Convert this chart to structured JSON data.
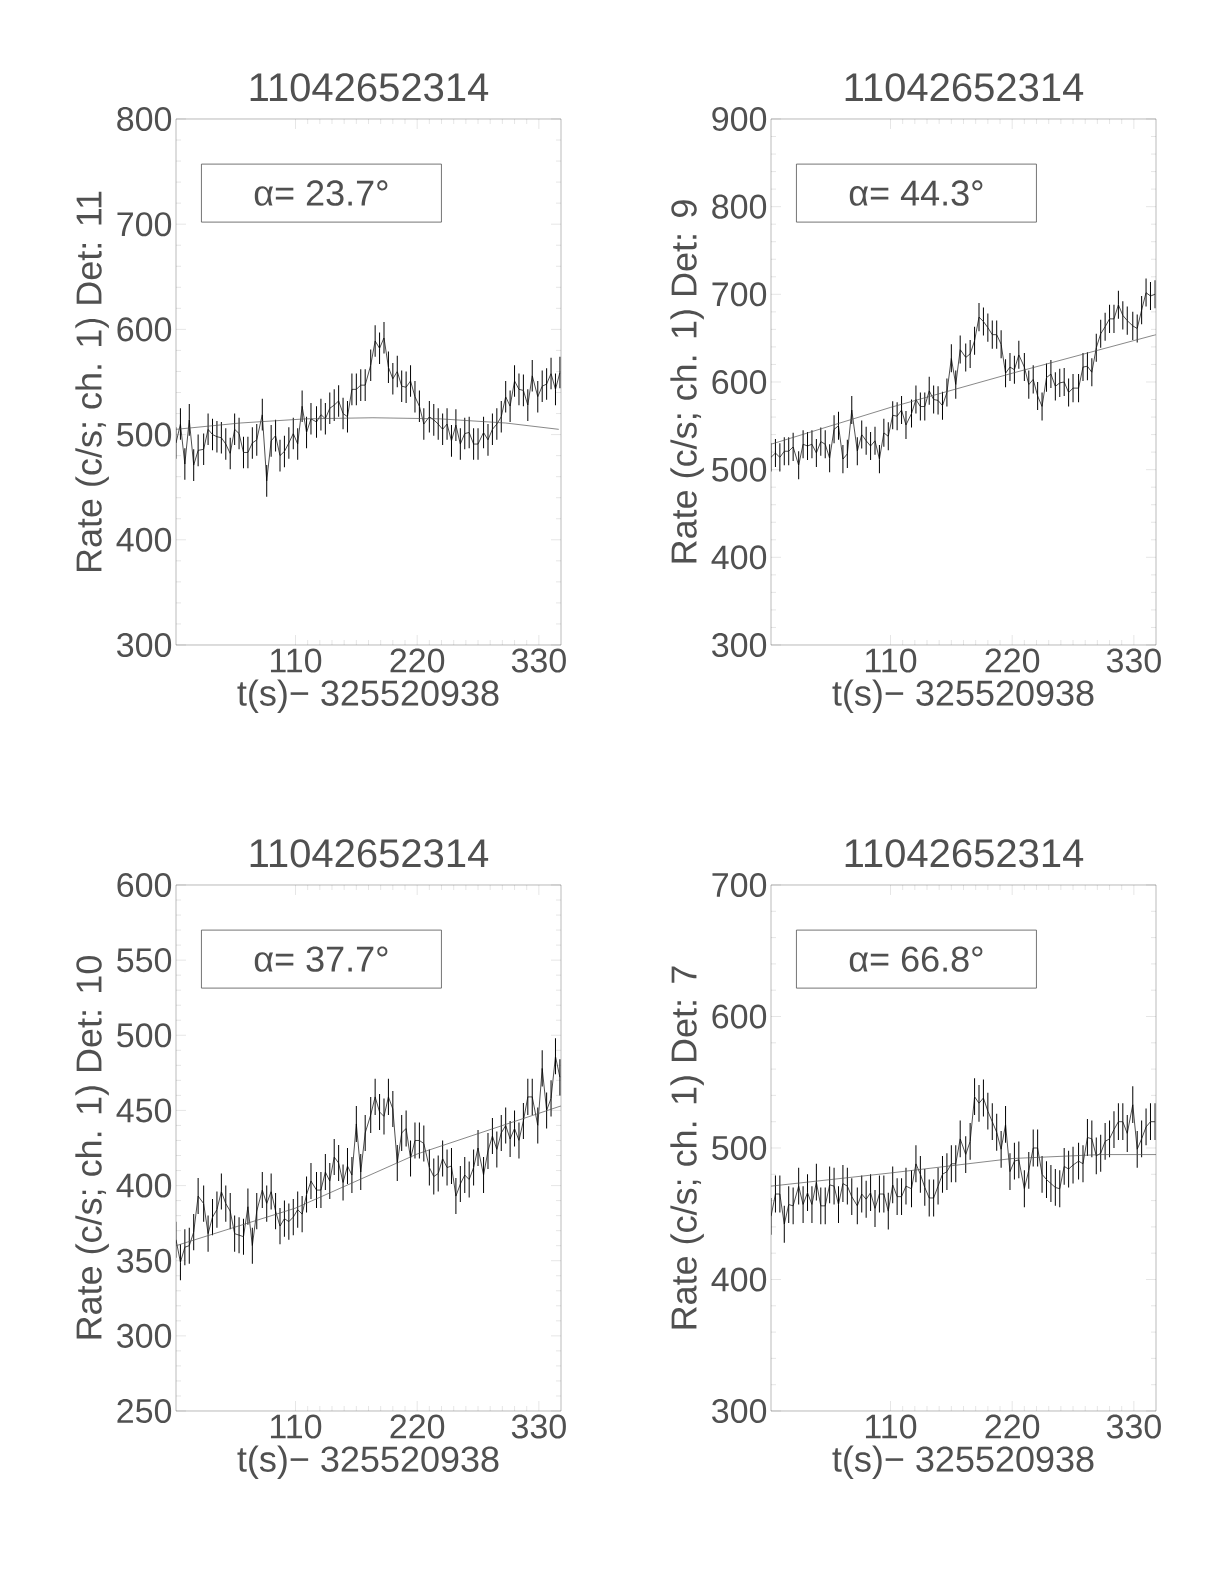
{
  "chart_data": [
    {
      "type": "line",
      "title": "11042652314",
      "xlabel": "t(s)− 325520938",
      "ylabel": "Rate (c/s; ch. 1) Det: 11",
      "annotations": [
        "α= 23.7°"
      ],
      "x": [
        2,
        6,
        10,
        14,
        18,
        22,
        27,
        31,
        35,
        39,
        43,
        47,
        51,
        55,
        59,
        63,
        67,
        71,
        75,
        80,
        84,
        88,
        92,
        96,
        100,
        104,
        108,
        112,
        116,
        120,
        124,
        129,
        133,
        137,
        141,
        145,
        149,
        153,
        157,
        161,
        165,
        169,
        173,
        178,
        182,
        186,
        190,
        194,
        198,
        202,
        206,
        210,
        214,
        218,
        222,
        226,
        231,
        235,
        239,
        243,
        247,
        251,
        255,
        259,
        263,
        267,
        271,
        275,
        280,
        284,
        288,
        292,
        296,
        300,
        304,
        308,
        312,
        316,
        320,
        324,
        329,
        333,
        337,
        341,
        345,
        349
      ],
      "xlim": [
        2,
        350
      ],
      "xticks": [
        110,
        220,
        330
      ],
      "ylim": [
        300,
        800
      ],
      "yticks": [
        300,
        400,
        500,
        600,
        700,
        800
      ],
      "series": [
        {
          "color": "#000000",
          "values": [
            492,
            510,
            472,
            514,
            471,
            485,
            486,
            505,
            500,
            498,
            497,
            491,
            482,
            505,
            501,
            483,
            483,
            492,
            495,
            519,
            456,
            494,
            499,
            480,
            484,
            492,
            501,
            491,
            527,
            502,
            515,
            512,
            519,
            515,
            525,
            528,
            532,
            520,
            517,
            543,
            543,
            547,
            547,
            566,
            589,
            582,
            592,
            564,
            553,
            560,
            546,
            545,
            551,
            536,
            527,
            510,
            517,
            514,
            510,
            505,
            510,
            494,
            509,
            491,
            501,
            502,
            491,
            491,
            502,
            495,
            505,
            510,
            517,
            536,
            527,
            551,
            543,
            542,
            528,
            556,
            536,
            546,
            548,
            558,
            543,
            559
          ],
          "errors": [
            15,
            15,
            15,
            15,
            15,
            15,
            15,
            15,
            15,
            15,
            15,
            15,
            15,
            15,
            15,
            15,
            15,
            15,
            15,
            15,
            15,
            15,
            15,
            15,
            15,
            15,
            15,
            15,
            15,
            15,
            15,
            15,
            15,
            15,
            15,
            15,
            15,
            15,
            15,
            15,
            15,
            15,
            15,
            15,
            15,
            15,
            15,
            15,
            15,
            15,
            15,
            15,
            15,
            15,
            15,
            15,
            15,
            15,
            15,
            15,
            15,
            15,
            15,
            15,
            15,
            15,
            15,
            15,
            15,
            15,
            15,
            15,
            15,
            15,
            15,
            15,
            15,
            15,
            15,
            15,
            15,
            15,
            15,
            15,
            15,
            15
          ]
        },
        {
          "color": "#555555",
          "x": [
            2,
            60,
            120,
            180,
            240,
            300,
            348
          ],
          "values": [
            505,
            511,
            515,
            516,
            515,
            511,
            505
          ]
        }
      ]
    },
    {
      "type": "line",
      "title": "11042652314",
      "xlabel": "t(s)− 325520938",
      "ylabel": "Rate (c/s; ch. 1) Det: 9",
      "annotations": [
        "α= 44.3°"
      ],
      "x": [
        2,
        6,
        10,
        14,
        18,
        22,
        27,
        31,
        35,
        39,
        43,
        47,
        51,
        55,
        59,
        63,
        67,
        71,
        75,
        80,
        84,
        88,
        92,
        96,
        100,
        104,
        108,
        112,
        116,
        120,
        124,
        129,
        133,
        137,
        141,
        145,
        149,
        153,
        157,
        161,
        165,
        169,
        173,
        178,
        182,
        186,
        190,
        194,
        198,
        202,
        206,
        210,
        214,
        218,
        222,
        226,
        231,
        235,
        239,
        243,
        247,
        251,
        255,
        259,
        263,
        267,
        271,
        275,
        280,
        284,
        288,
        292,
        296,
        300,
        304,
        308,
        312,
        316,
        320,
        324,
        329,
        333,
        337,
        341,
        345,
        349
      ],
      "xlim": [
        2,
        350
      ],
      "xticks": [
        110,
        220,
        330
      ],
      "ylim": [
        300,
        900
      ],
      "yticks": [
        300,
        400,
        500,
        600,
        700,
        800,
        900
      ],
      "series": [
        {
          "color": "#000000",
          "values": [
            514,
            519,
            514,
            521,
            521,
            526,
            505,
            529,
            527,
            529,
            519,
            532,
            529,
            513,
            546,
            550,
            512,
            518,
            568,
            521,
            540,
            533,
            527,
            533,
            512,
            542,
            538,
            562,
            561,
            568,
            551,
            564,
            580,
            572,
            572,
            590,
            580,
            579,
            573,
            588,
            627,
            597,
            637,
            628,
            632,
            647,
            674,
            669,
            662,
            654,
            654,
            643,
            610,
            617,
            614,
            631,
            617,
            597,
            603,
            584,
            572,
            605,
            609,
            595,
            599,
            600,
            588,
            593,
            593,
            617,
            618,
            611,
            639,
            655,
            663,
            672,
            672,
            688,
            676,
            670,
            664,
            661,
            682,
            702,
            698,
            700
          ],
          "errors": [
            16,
            16,
            16,
            16,
            16,
            16,
            16,
            16,
            16,
            16,
            16,
            16,
            16,
            16,
            16,
            16,
            16,
            16,
            16,
            16,
            16,
            16,
            16,
            16,
            16,
            16,
            16,
            16,
            16,
            16,
            16,
            16,
            16,
            16,
            16,
            16,
            16,
            16,
            16,
            16,
            16,
            16,
            16,
            16,
            16,
            16,
            16,
            16,
            16,
            16,
            16,
            16,
            16,
            16,
            16,
            16,
            16,
            16,
            16,
            16,
            16,
            16,
            16,
            16,
            16,
            16,
            16,
            16,
            16,
            16,
            16,
            16,
            16,
            16,
            16,
            16,
            16,
            16,
            16,
            16,
            16,
            16,
            16,
            16,
            16,
            16
          ]
        },
        {
          "color": "#555555",
          "x": [
            2,
            110,
            220,
            350
          ],
          "values": [
            529,
            571,
            610,
            654
          ]
        }
      ]
    },
    {
      "type": "line",
      "title": "11042652314",
      "xlabel": "t(s)− 325520938",
      "ylabel": "Rate (c/s; ch. 1) Det: 10",
      "annotations": [
        "α= 37.7°"
      ],
      "x": [
        2,
        6,
        10,
        14,
        18,
        22,
        27,
        31,
        35,
        39,
        43,
        47,
        51,
        55,
        59,
        63,
        67,
        71,
        75,
        80,
        84,
        88,
        92,
        96,
        100,
        104,
        108,
        112,
        116,
        120,
        124,
        129,
        133,
        137,
        141,
        145,
        149,
        153,
        157,
        161,
        165,
        169,
        173,
        178,
        182,
        186,
        190,
        194,
        198,
        202,
        206,
        210,
        214,
        218,
        222,
        226,
        231,
        235,
        239,
        243,
        247,
        251,
        255,
        259,
        263,
        267,
        271,
        275,
        280,
        284,
        288,
        292,
        296,
        300,
        304,
        308,
        312,
        316,
        320,
        324,
        329,
        333,
        337,
        341,
        345,
        349
      ],
      "xlim": [
        2,
        350
      ],
      "xticks": [
        110,
        220,
        330
      ],
      "ylim": [
        250,
        600
      ],
      "yticks": [
        250,
        300,
        350,
        400,
        450,
        500,
        550,
        600
      ],
      "series": [
        {
          "color": "#000000",
          "values": [
            364,
            349,
            359,
            360,
            369,
            393,
            388,
            368,
            379,
            384,
            396,
            388,
            383,
            368,
            367,
            366,
            386,
            360,
            383,
            397,
            388,
            396,
            383,
            373,
            378,
            376,
            379,
            384,
            381,
            394,
            403,
            397,
            397,
            409,
            403,
            419,
            415,
            402,
            413,
            407,
            441,
            409,
            435,
            447,
            459,
            449,
            446,
            459,
            451,
            415,
            435,
            438,
            418,
            430,
            430,
            428,
            412,
            406,
            408,
            418,
            412,
            413,
            393,
            401,
            407,
            404,
            412,
            425,
            407,
            423,
            433,
            424,
            435,
            440,
            431,
            438,
            430,
            443,
            459,
            459,
            440,
            478,
            450,
            458,
            486,
            472
          ],
          "errors": [
            12,
            12,
            12,
            12,
            12,
            12,
            12,
            12,
            12,
            12,
            12,
            12,
            12,
            12,
            12,
            12,
            12,
            12,
            12,
            12,
            12,
            12,
            12,
            12,
            12,
            12,
            12,
            12,
            12,
            12,
            12,
            12,
            12,
            12,
            12,
            12,
            12,
            12,
            12,
            12,
            12,
            12,
            12,
            12,
            12,
            12,
            12,
            12,
            12,
            12,
            12,
            12,
            12,
            12,
            12,
            12,
            12,
            12,
            12,
            12,
            12,
            12,
            12,
            12,
            12,
            12,
            12,
            12,
            12,
            12,
            12,
            12,
            12,
            12,
            12,
            12,
            12,
            12,
            12,
            12,
            12,
            12,
            12,
            12,
            12,
            12
          ]
        },
        {
          "color": "#555555",
          "x": [
            2,
            110,
            220,
            350
          ],
          "values": [
            360,
            385,
            421,
            453
          ]
        }
      ]
    },
    {
      "type": "line",
      "title": "11042652314",
      "xlabel": "t(s)− 325520938",
      "ylabel": "Rate (c/s; ch. 1) Det: 7",
      "annotations": [
        "α= 66.8°"
      ],
      "x": [
        2,
        6,
        10,
        14,
        18,
        22,
        27,
        31,
        35,
        39,
        43,
        47,
        51,
        55,
        59,
        63,
        67,
        71,
        75,
        80,
        84,
        88,
        92,
        96,
        100,
        104,
        108,
        112,
        116,
        120,
        124,
        129,
        133,
        137,
        141,
        145,
        149,
        153,
        157,
        161,
        165,
        169,
        173,
        178,
        182,
        186,
        190,
        194,
        198,
        202,
        206,
        210,
        214,
        218,
        222,
        226,
        231,
        235,
        239,
        243,
        247,
        251,
        255,
        259,
        263,
        267,
        271,
        275,
        280,
        284,
        288,
        292,
        296,
        300,
        304,
        308,
        312,
        316,
        320,
        324,
        329,
        333,
        337,
        341,
        345,
        349
      ],
      "xlim": [
        2,
        350
      ],
      "xticks": [
        110,
        220,
        330
      ],
      "ylim": [
        300,
        700
      ],
      "yticks": [
        300,
        400,
        500,
        600,
        700
      ],
      "series": [
        {
          "color": "#000000",
          "values": [
            448,
            465,
            465,
            442,
            457,
            456,
            471,
            457,
            466,
            457,
            474,
            456,
            456,
            472,
            471,
            457,
            473,
            471,
            463,
            456,
            465,
            461,
            466,
            454,
            465,
            465,
            452,
            472,
            463,
            463,
            471,
            469,
            488,
            480,
            470,
            462,
            462,
            471,
            480,
            482,
            488,
            488,
            507,
            495,
            505,
            539,
            534,
            538,
            528,
            520,
            512,
            499,
            518,
            482,
            490,
            491,
            469,
            483,
            500,
            500,
            480,
            476,
            473,
            470,
            469,
            486,
            484,
            487,
            490,
            488,
            508,
            507,
            494,
            496,
            505,
            507,
            514,
            520,
            520,
            511,
            533,
            499,
            507,
            516,
            520,
            520
          ],
          "errors": [
            14,
            14,
            14,
            14,
            14,
            14,
            14,
            14,
            14,
            14,
            14,
            14,
            14,
            14,
            14,
            14,
            14,
            14,
            14,
            14,
            14,
            14,
            14,
            14,
            14,
            14,
            14,
            14,
            14,
            14,
            14,
            14,
            14,
            14,
            14,
            14,
            14,
            14,
            14,
            14,
            14,
            14,
            14,
            14,
            14,
            14,
            14,
            14,
            14,
            14,
            14,
            14,
            14,
            14,
            14,
            14,
            14,
            14,
            14,
            14,
            14,
            14,
            14,
            14,
            14,
            14,
            14,
            14,
            14,
            14,
            14,
            14,
            14,
            14,
            14,
            14,
            14,
            14,
            14,
            14,
            14,
            14,
            14,
            14,
            14,
            14
          ]
        },
        {
          "color": "#555555",
          "x": [
            2,
            110,
            220,
            300,
            350
          ],
          "values": [
            471,
            481,
            492,
            495,
            495
          ]
        }
      ]
    }
  ]
}
